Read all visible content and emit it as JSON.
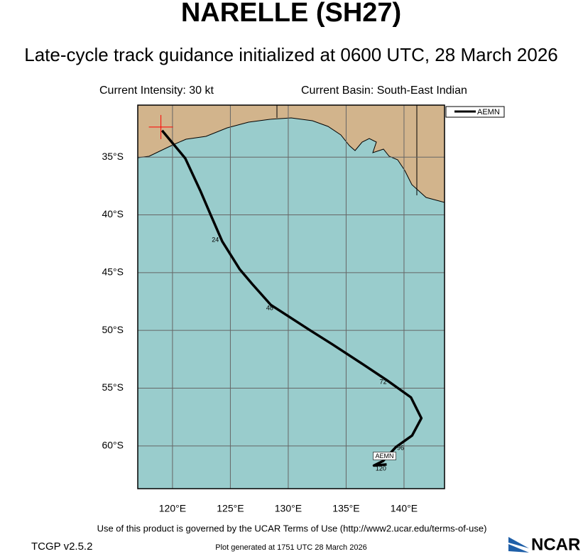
{
  "header": {
    "title": "NARELLE (SH27)",
    "subtitle": "Late-cycle track guidance initialized at 0600 UTC, 28 March 2026",
    "intensity": "Current Intensity: 30 kt",
    "basin": "Current Basin: South-East Indian"
  },
  "map": {
    "lon_range": [
      117,
      143.5
    ],
    "lat_range": [
      -30.5,
      -63.7
    ],
    "lon_ticks": [
      {
        "value": 120,
        "label": "120°E"
      },
      {
        "value": 125,
        "label": "125°E"
      },
      {
        "value": 130,
        "label": "130°E"
      },
      {
        "value": 135,
        "label": "135°E"
      },
      {
        "value": 140,
        "label": "140°E"
      }
    ],
    "lat_ticks": [
      {
        "value": -35,
        "label": "35°S"
      },
      {
        "value": -40,
        "label": "40°S"
      },
      {
        "value": -45,
        "label": "45°S"
      },
      {
        "value": -50,
        "label": "50°S"
      },
      {
        "value": -55,
        "label": "55°S"
      },
      {
        "value": -60,
        "label": "60°S"
      }
    ],
    "current_position": {
      "lon": 119.0,
      "lat": -32.4,
      "color": "#ff0000"
    },
    "track": {
      "name": "AEMN",
      "color": "#000000",
      "lon": [
        119.1,
        121.1,
        122.4,
        123.3,
        124.3,
        125.8,
        126.9,
        128.5,
        131.9,
        133.8,
        136.4,
        138.5,
        140.6,
        141.5,
        140.7,
        139.3,
        138.2,
        137.4,
        138.5
      ],
      "lat": [
        -32.7,
        -35.1,
        -37.9,
        -40.0,
        -42.3,
        -44.7,
        -46.0,
        -47.8,
        -50.0,
        -51.2,
        -52.9,
        -54.3,
        -55.8,
        -57.6,
        -59.1,
        -60.1,
        -61.3,
        -61.7,
        -61.6
      ],
      "hour_labels": [
        {
          "hour": "24",
          "lon": 123.7,
          "lat": -42.2
        },
        {
          "hour": "48",
          "lon": 128.4,
          "lat": -48.1
        },
        {
          "hour": "72",
          "lon": 138.2,
          "lat": -54.5
        },
        {
          "hour": "96",
          "lon": 139.7,
          "lat": -60.2
        },
        {
          "hour": "120",
          "lon": 138.0,
          "lat": -62.0
        }
      ]
    }
  },
  "footer": {
    "terms": "Use of this product is governed by the UCAR Terms of Use (http://www2.ucar.edu/terms-of-use)",
    "version": "TCGP v2.5.2",
    "generated": "Plot generated at 1751 UTC  28 March 2026",
    "logo": "NCAR"
  }
}
